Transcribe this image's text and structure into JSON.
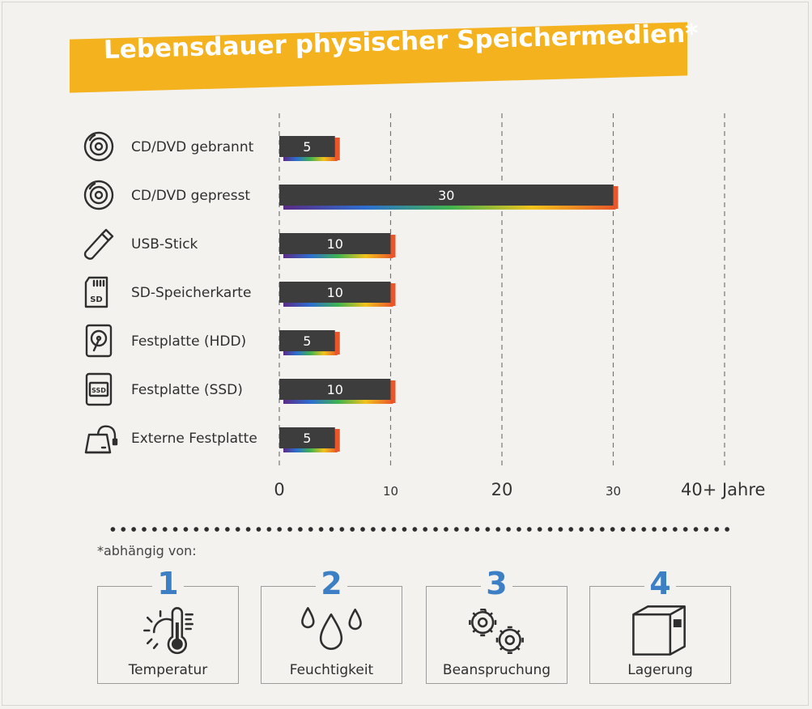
{
  "title": "Lebensdauer physischer Speichermedien*",
  "chart_data": {
    "type": "bar",
    "orientation": "horizontal",
    "title": "Lebensdauer physischer Speichermedien*",
    "categories": [
      "CD/DVD gebrannt",
      "CD/DVD gepresst",
      "USB-Stick",
      "SD-Speicherkarte",
      "Festplatte (HDD)",
      "Festplatte (SSD)",
      "Externe Festplatte"
    ],
    "values": [
      5,
      30,
      10,
      10,
      5,
      10,
      5
    ],
    "icons": [
      "disc-icon",
      "disc-icon",
      "usb-stick-icon",
      "sd-card-icon",
      "hdd-icon",
      "ssd-icon",
      "external-drive-icon"
    ],
    "xlim": [
      0,
      40
    ],
    "ticks": [
      0,
      10,
      20,
      30,
      40
    ],
    "tick_labels": [
      "0",
      "10",
      "20",
      "30",
      "40+ Jahre"
    ],
    "grid": true,
    "bar_color": "#3d3d3d",
    "accent_color": "#e8562a"
  },
  "footnote": "*abhängig von:",
  "factors": [
    {
      "number": "1",
      "label": "Temperatur",
      "icon": "thermometer-sun-icon"
    },
    {
      "number": "2",
      "label": "Feuchtigkeit",
      "icon": "droplets-icon"
    },
    {
      "number": "3",
      "label": "Beanspruchung",
      "icon": "gears-icon"
    },
    {
      "number": "4",
      "label": "Lagerung",
      "icon": "storage-box-icon"
    }
  ],
  "colors": {
    "banner": "#f4b21f",
    "number": "#3d7fc4",
    "background": "#f3f2ef"
  }
}
